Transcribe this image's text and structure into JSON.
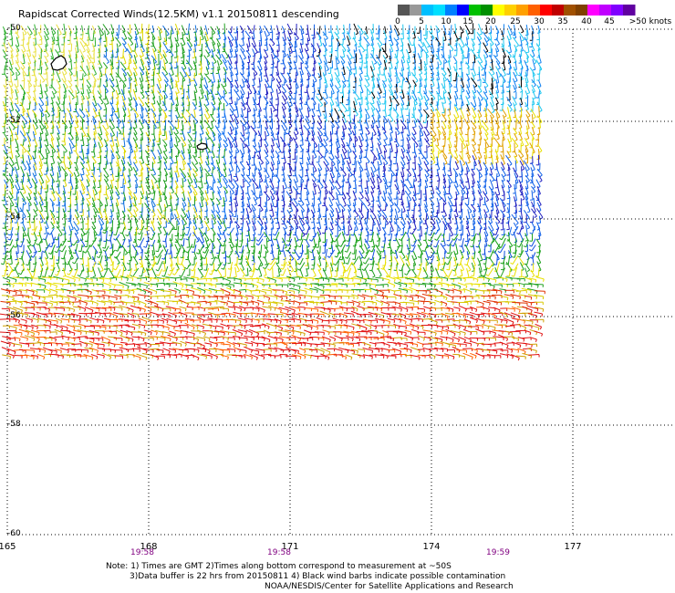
{
  "title": "Rapidscat Corrected Winds(12.5KM) v1.1 20150811 descending",
  "colorbar": {
    "colors": [
      "#555555",
      "#999999",
      "#00bfff",
      "#00dfff",
      "#0080ff",
      "#0000ff",
      "#00c000",
      "#009000",
      "#ffff00",
      "#ffd000",
      "#ffa000",
      "#ff6000",
      "#ff0000",
      "#c00000",
      "#a05000",
      "#804000",
      "#ff00ff",
      "#c000ff",
      "#8000ff",
      "#6000a0"
    ],
    "labels": [
      "0",
      "5",
      "10",
      "15",
      "20",
      "25",
      "30",
      "35",
      "40",
      "45",
      ">50 knots"
    ]
  },
  "lat_labels": [
    "-50",
    "-52",
    "-54",
    "-56",
    "-58",
    "-60"
  ],
  "lon_labels": [
    "165",
    "168",
    "171",
    "174",
    "177"
  ],
  "time_labels": [
    "19:58",
    "19:58",
    "19:59"
  ],
  "notes": {
    "line1": "Note: 1) Times are GMT 2)Times along bottom correspond to measurement at ~50S",
    "line2": "3)Data buffer is 22 hrs from 20150811 4) Black wind barbs indicate possible contamination",
    "line3": "NOAA/NESDIS/Center for Satellite Applications and Research"
  }
}
